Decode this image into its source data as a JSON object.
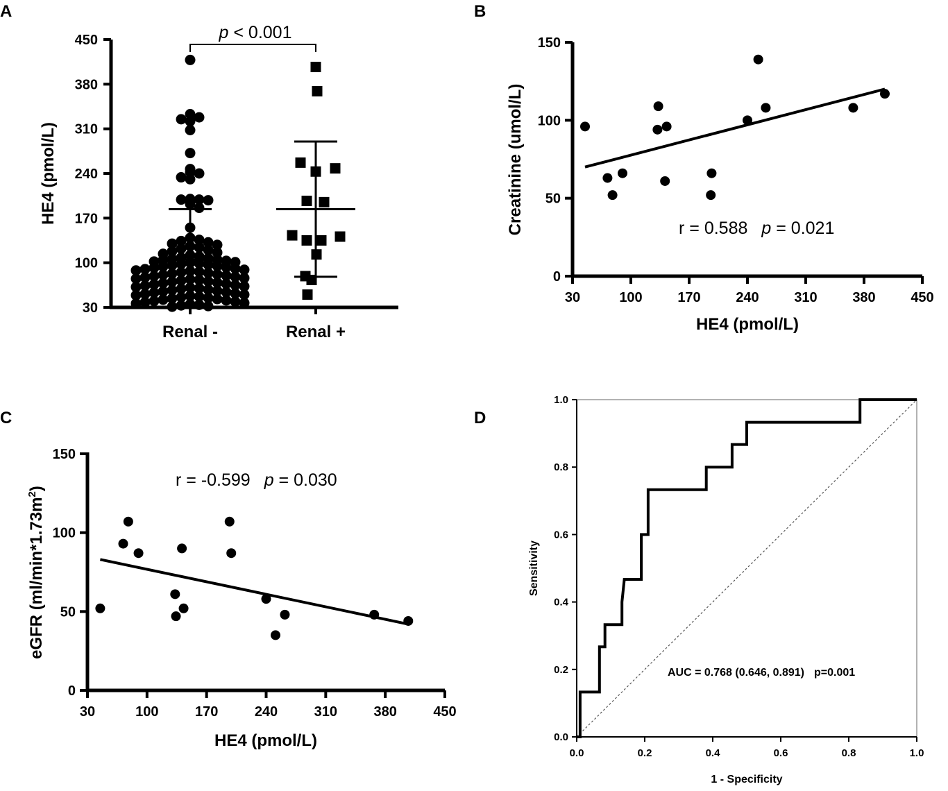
{
  "chart_data": [
    {
      "panel": "A",
      "type": "scatter",
      "ylabel": "HE4 (pmol/L)",
      "xlabel": "",
      "ylim": [
        30,
        450
      ],
      "yticks": [
        "450",
        "380",
        "310",
        "240",
        "170",
        "100",
        "30"
      ],
      "categories": [
        "Renal -",
        "Renal +"
      ],
      "annotation": {
        "p_prefix": "p",
        "p_text": " < 0.001"
      },
      "series": [
        {
          "name": "Renal -",
          "marker": "circle",
          "mean": 105,
          "sd_upper": 184,
          "sd_lower": 30,
          "values": [
            418,
            333,
            328,
            325,
            322,
            308,
            272,
            247,
            242,
            240,
            231,
            234,
            200,
            199,
            199,
            198,
            192,
            186,
            155,
            139,
            136,
            134,
            132,
            130,
            128,
            126,
            124,
            122,
            120,
            118,
            116,
            114,
            112,
            110,
            108,
            107,
            106,
            105,
            104,
            103,
            102,
            101,
            100,
            99,
            98,
            97,
            96,
            95,
            94,
            93,
            92,
            91,
            90,
            89,
            88,
            87,
            86,
            85,
            84,
            83,
            82,
            81,
            80,
            79,
            78,
            77,
            76,
            75,
            74,
            73,
            72,
            71,
            70,
            69,
            68,
            67,
            66,
            65,
            64,
            63,
            62,
            61,
            60,
            59,
            58,
            57,
            56,
            55,
            54,
            53,
            52,
            51,
            50,
            49,
            48,
            47,
            46,
            45,
            44,
            43,
            42,
            41,
            40,
            39,
            38,
            37,
            36,
            35,
            34,
            33,
            32,
            31
          ]
        },
        {
          "name": "Renal +",
          "marker": "square",
          "mean": 184,
          "sd_upper": 290,
          "sd_lower": 78,
          "values": [
            407,
            369,
            257,
            248,
            243,
            197,
            195,
            143,
            141,
            135,
            135,
            113,
            79,
            73,
            50
          ]
        }
      ]
    },
    {
      "panel": "B",
      "type": "scatter",
      "xlabel": "HE4 (pmol/L)",
      "ylabel": "Creatinine (umol/L)",
      "xlim": [
        30,
        450
      ],
      "ylim": [
        0,
        150
      ],
      "xticks": [
        "30",
        "100",
        "170",
        "240",
        "310",
        "380",
        "450"
      ],
      "yticks": [
        "150",
        "100",
        "50",
        "0"
      ],
      "points": [
        [
          45,
          96
        ],
        [
          72,
          63
        ],
        [
          78,
          52
        ],
        [
          90,
          66
        ],
        [
          133,
          109
        ],
        [
          132,
          94
        ],
        [
          143,
          96
        ],
        [
          141,
          61
        ],
        [
          197,
          66
        ],
        [
          196,
          52
        ],
        [
          240,
          100
        ],
        [
          253,
          139
        ],
        [
          262,
          108
        ],
        [
          367,
          108
        ],
        [
          405,
          117
        ]
      ],
      "fit": {
        "x1": 45,
        "y1": 70,
        "x2": 405,
        "y2": 120
      },
      "annotation": {
        "r_text": "r = 0.588",
        "p_prefix": "p",
        "p_text": " = 0.021"
      }
    },
    {
      "panel": "C",
      "type": "scatter",
      "xlabel": "HE4 (pmol/L)",
      "ylabel_main": "eGFR (ml/min*1.73m",
      "ylabel_sup": "2",
      "ylabel_end": ")",
      "xlim": [
        30,
        450
      ],
      "ylim": [
        0,
        150
      ],
      "xticks": [
        "30",
        "100",
        "170",
        "240",
        "310",
        "380",
        "450"
      ],
      "yticks": [
        "150",
        "100",
        "50",
        "0"
      ],
      "points": [
        [
          45,
          52
        ],
        [
          72,
          93
        ],
        [
          78,
          107
        ],
        [
          90,
          87
        ],
        [
          133,
          61
        ],
        [
          134,
          47
        ],
        [
          141,
          90
        ],
        [
          143,
          52
        ],
        [
          197,
          107
        ],
        [
          199,
          87
        ],
        [
          240,
          58
        ],
        [
          251,
          35
        ],
        [
          262,
          48
        ],
        [
          367,
          48
        ],
        [
          407,
          44
        ]
      ],
      "fit": {
        "x1": 45,
        "y1": 83,
        "x2": 407,
        "y2": 42
      },
      "annotation": {
        "r_text": "r = -0.599",
        "p_prefix": "p",
        "p_text": " = 0.030"
      }
    },
    {
      "panel": "D",
      "type": "line",
      "title": "",
      "xlabel": "1 - Specificity",
      "ylabel": "Sensitivity",
      "xlim": [
        0,
        1
      ],
      "ylim": [
        0,
        1
      ],
      "xticks": [
        "0.0",
        "0.2",
        "0.4",
        "0.6",
        "0.8",
        "1.0"
      ],
      "yticks": [
        "1.0",
        "0.8",
        "0.6",
        "0.4",
        "0.2",
        "0.0"
      ],
      "roc": [
        [
          0,
          0
        ],
        [
          0.01,
          0
        ],
        [
          0.01,
          0.133
        ],
        [
          0.067,
          0.133
        ],
        [
          0.067,
          0.267
        ],
        [
          0.083,
          0.267
        ],
        [
          0.083,
          0.333
        ],
        [
          0.133,
          0.333
        ],
        [
          0.133,
          0.4
        ],
        [
          0.14,
          0.467
        ],
        [
          0.19,
          0.467
        ],
        [
          0.19,
          0.6
        ],
        [
          0.21,
          0.6
        ],
        [
          0.21,
          0.733
        ],
        [
          0.381,
          0.733
        ],
        [
          0.381,
          0.8
        ],
        [
          0.457,
          0.8
        ],
        [
          0.457,
          0.867
        ],
        [
          0.5,
          0.867
        ],
        [
          0.5,
          0.933
        ],
        [
          0.833,
          0.933
        ],
        [
          0.833,
          1
        ],
        [
          1,
          1
        ]
      ],
      "annotation": {
        "auc_text": "AUC = 0.768 (0.646, 0.891)",
        "p_text": "p=0.001"
      }
    }
  ],
  "panel_labels": {
    "a": "A",
    "b": "B",
    "c": "C",
    "d": "D"
  }
}
